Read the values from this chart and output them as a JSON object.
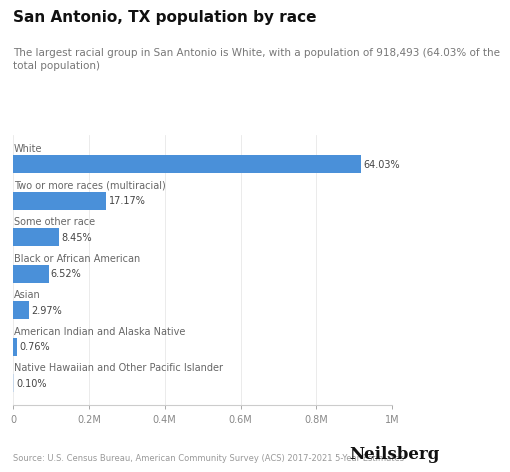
{
  "title": "San Antonio, TX population by race",
  "subtitle": "The largest racial group in San Antonio is White, with a population of 918,493 (64.03% of the\ntotal population)",
  "categories": [
    "White",
    "Two or more races (multiracial)",
    "Some other race",
    "Black or African American",
    "Asian",
    "American Indian and Alaska Native",
    "Native Hawaiian and Other Pacific Islander"
  ],
  "values": [
    918493,
    246358,
    121248,
    93554,
    42594,
    10905,
    1435
  ],
  "percentages": [
    "64.03%",
    "17.17%",
    "8.45%",
    "6.52%",
    "2.97%",
    "0.76%",
    "0.10%"
  ],
  "bar_color": "#4A90D9",
  "last_bar_color": "#C8D8EA",
  "xlim": [
    0,
    1000000
  ],
  "xticks": [
    0,
    200000,
    400000,
    600000,
    800000,
    1000000
  ],
  "xtick_labels": [
    "0",
    "0.2M",
    "0.4M",
    "0.6M",
    "0.8M",
    "1M"
  ],
  "source": "Source: U.S. Census Bureau, American Community Survey (ACS) 2017-2021 5-Year Estimates",
  "brand": "Neilsberg",
  "background_color": "#ffffff",
  "bar_height": 0.5,
  "title_fontsize": 11,
  "subtitle_fontsize": 7.5,
  "cat_fontsize": 7,
  "pct_fontsize": 7,
  "tick_fontsize": 7,
  "source_fontsize": 6,
  "brand_fontsize": 12
}
